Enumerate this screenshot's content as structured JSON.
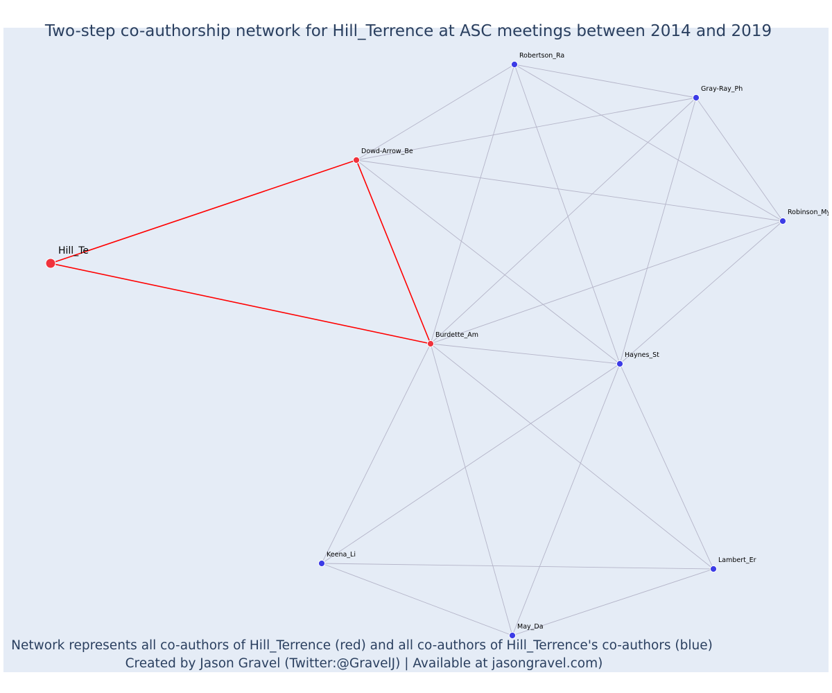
{
  "title": "Two-step co-authorship network for Hill_Terrence at ASC meetings between 2014 and 2019",
  "caption": {
    "line1": "Network represents all co-authors of Hill_Terrence (red) and all co-authors of Hill_Terrence's co-authors (blue)",
    "line2": "Created by Jason Gravel (Twitter:@GravelJ) | Available at jasongravel.com)"
  },
  "colors": {
    "plot_background": "#e5ecf6",
    "red_node": "#f0323c",
    "blue_node": "#3c3ce6",
    "red_edge": "#ff0000",
    "grey_edge": "#b4b4c8",
    "text": "#2a3f5f"
  },
  "network": {
    "nodes": [
      {
        "id": "Hill_Te",
        "label": "Hill_Te",
        "group": "focal"
      },
      {
        "id": "Dowd-Arrow_Be",
        "label": "Dowd-Arrow_Be",
        "group": "coauthor"
      },
      {
        "id": "Burdette_Am",
        "label": "Burdette_Am",
        "group": "coauthor"
      },
      {
        "id": "Robertson_Ra",
        "label": "Robertson_Ra",
        "group": "second"
      },
      {
        "id": "Gray-Ray_Ph",
        "label": "Gray-Ray_Ph",
        "group": "second"
      },
      {
        "id": "Robinson_My",
        "label": "Robinson_My",
        "group": "second"
      },
      {
        "id": "Haynes_St",
        "label": "Haynes_St",
        "group": "second"
      },
      {
        "id": "Keena_Li",
        "label": "Keena_Li",
        "group": "second"
      },
      {
        "id": "Lambert_Er",
        "label": "Lambert_Er",
        "group": "second"
      },
      {
        "id": "May_Da",
        "label": "May_Da",
        "group": "second"
      }
    ],
    "edges": [
      {
        "source": "Hill_Te",
        "target": "Dowd-Arrow_Be",
        "type": "direct"
      },
      {
        "source": "Hill_Te",
        "target": "Burdette_Am",
        "type": "direct"
      },
      {
        "source": "Dowd-Arrow_Be",
        "target": "Burdette_Am",
        "type": "direct"
      },
      {
        "source": "Dowd-Arrow_Be",
        "target": "Robertson_Ra",
        "type": "indirect"
      },
      {
        "source": "Dowd-Arrow_Be",
        "target": "Gray-Ray_Ph",
        "type": "indirect"
      },
      {
        "source": "Dowd-Arrow_Be",
        "target": "Robinson_My",
        "type": "indirect"
      },
      {
        "source": "Dowd-Arrow_Be",
        "target": "Haynes_St",
        "type": "indirect"
      },
      {
        "source": "Robertson_Ra",
        "target": "Gray-Ray_Ph",
        "type": "indirect"
      },
      {
        "source": "Robertson_Ra",
        "target": "Robinson_My",
        "type": "indirect"
      },
      {
        "source": "Robertson_Ra",
        "target": "Burdette_Am",
        "type": "indirect"
      },
      {
        "source": "Robertson_Ra",
        "target": "Haynes_St",
        "type": "indirect"
      },
      {
        "source": "Gray-Ray_Ph",
        "target": "Robinson_My",
        "type": "indirect"
      },
      {
        "source": "Gray-Ray_Ph",
        "target": "Burdette_Am",
        "type": "indirect"
      },
      {
        "source": "Gray-Ray_Ph",
        "target": "Haynes_St",
        "type": "indirect"
      },
      {
        "source": "Robinson_My",
        "target": "Burdette_Am",
        "type": "indirect"
      },
      {
        "source": "Robinson_My",
        "target": "Haynes_St",
        "type": "indirect"
      },
      {
        "source": "Burdette_Am",
        "target": "Haynes_St",
        "type": "indirect"
      },
      {
        "source": "Burdette_Am",
        "target": "Keena_Li",
        "type": "indirect"
      },
      {
        "source": "Burdette_Am",
        "target": "May_Da",
        "type": "indirect"
      },
      {
        "source": "Burdette_Am",
        "target": "Lambert_Er",
        "type": "indirect"
      },
      {
        "source": "Haynes_St",
        "target": "Keena_Li",
        "type": "indirect"
      },
      {
        "source": "Haynes_St",
        "target": "May_Da",
        "type": "indirect"
      },
      {
        "source": "Haynes_St",
        "target": "Lambert_Er",
        "type": "indirect"
      },
      {
        "source": "Keena_Li",
        "target": "Lambert_Er",
        "type": "indirect"
      },
      {
        "source": "Keena_Li",
        "target": "May_Da",
        "type": "indirect"
      },
      {
        "source": "May_Da",
        "target": "Lambert_Er",
        "type": "indirect"
      }
    ]
  }
}
